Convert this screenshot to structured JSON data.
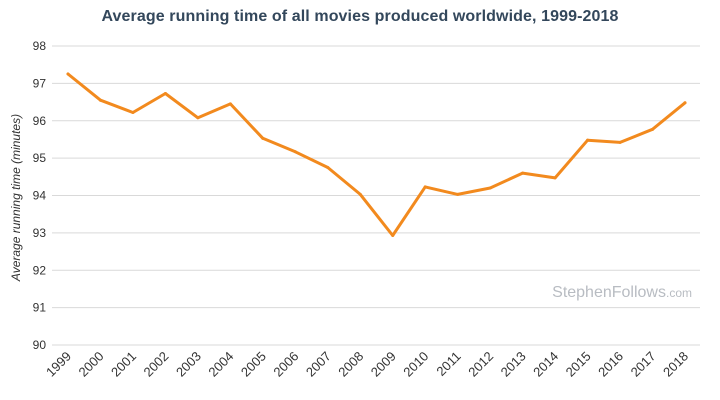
{
  "chart_data": {
    "type": "line",
    "title": "Average running time of all movies produced worldwide, 1999-2018",
    "xlabel": "",
    "ylabel": "Average running time (minutes)",
    "ylim": [
      90,
      98
    ],
    "yticks": [
      90,
      91,
      92,
      93,
      94,
      95,
      96,
      97,
      98
    ],
    "grid": true,
    "x": [
      "1999",
      "2000",
      "2001",
      "2002",
      "2003",
      "2004",
      "2005",
      "2006",
      "2007",
      "2008",
      "2009",
      "2010",
      "2011",
      "2012",
      "2013",
      "2014",
      "2015",
      "2016",
      "2017",
      "2018"
    ],
    "series": [
      {
        "name": "",
        "color": "#f28a1e",
        "values": [
          97.25,
          96.55,
          96.22,
          96.73,
          96.08,
          96.45,
          95.53,
          95.17,
          94.75,
          94.03,
          92.93,
          94.23,
          94.03,
          94.2,
          94.6,
          94.47,
          95.48,
          95.42,
          95.77,
          96.48
        ]
      }
    ]
  },
  "watermark": {
    "main": "StephenFollows",
    "suffix": ".com"
  }
}
